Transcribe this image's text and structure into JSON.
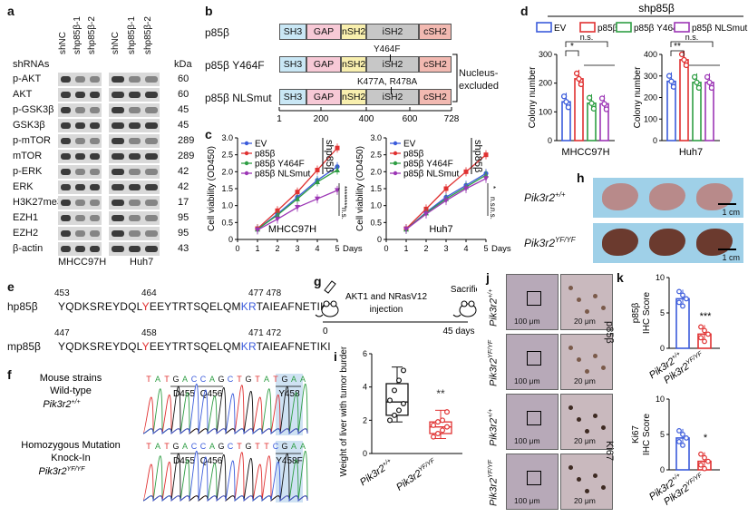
{
  "panels": {
    "a": "a",
    "b": "b",
    "c": "c",
    "d": "d",
    "e": "e",
    "f": "f",
    "g": "g",
    "h": "h",
    "i": "i",
    "j": "j",
    "k": "k"
  },
  "panel_a": {
    "shrnas_label": "shRNAs",
    "kda_label": "kDa",
    "lanes": [
      "shNC",
      "shp85β-1",
      "shp85β-2",
      "shNC",
      "shp85β-1",
      "shp85β-2"
    ],
    "cell_lines": [
      "MHCC97H",
      "Huh7"
    ],
    "blots": [
      {
        "name": "p-AKT",
        "kda": "60"
      },
      {
        "name": "AKT",
        "kda": "60"
      },
      {
        "name": "p-GSK3β",
        "kda": "45"
      },
      {
        "name": "GSK3β",
        "kda": "45"
      },
      {
        "name": "p-mTOR",
        "kda": "289"
      },
      {
        "name": "mTOR",
        "kda": "289"
      },
      {
        "name": "p-ERK",
        "kda": "42"
      },
      {
        "name": "ERK",
        "kda": "42"
      },
      {
        "name": "H3K27me3",
        "kda": "17"
      },
      {
        "name": "EZH1",
        "kda": "95"
      },
      {
        "name": "EZH2",
        "kda": "95"
      },
      {
        "name": "β-actin",
        "kda": "43"
      }
    ]
  },
  "panel_b": {
    "constructs": [
      {
        "name": "p85β",
        "note": ""
      },
      {
        "name": "p85β Y464F",
        "note": "Y464F"
      },
      {
        "name": "p85β NLSmut",
        "note": "K477A, R478A"
      }
    ],
    "domains": [
      {
        "name": "SH3",
        "color": "#c9e7f5"
      },
      {
        "name": "GAP",
        "color": "#f7c9d6"
      },
      {
        "name": "nSH2",
        "color": "#f8efae"
      },
      {
        "name": "iSH2",
        "color": "#c7c7c7"
      },
      {
        "name": "cSH2",
        "color": "#f2b9b1"
      }
    ],
    "axis_ticks": [
      "1",
      "200",
      "400",
      "600",
      "728"
    ],
    "nucleus_excluded": "Nucleus-excluded"
  },
  "panel_c": {
    "legend": [
      "EV",
      "p85β",
      "p85β Y464F",
      "p85β NLSmut"
    ],
    "colors": [
      "#3b5bdb",
      "#e03131",
      "#2f9e44",
      "#9c36b5"
    ],
    "ylabel": "Cell viability (OD450)",
    "xlabel": "Days",
    "shp85b": "shp85β",
    "sig_left": [
      "****",
      "****",
      "n.s."
    ],
    "sig_right": [
      "*",
      "n.s.",
      "n.s."
    ],
    "chart_data": [
      {
        "type": "line",
        "title": "MHCC97H",
        "x": [
          1,
          2,
          3,
          4,
          5
        ],
        "xlim": [
          0,
          5
        ],
        "ylim": [
          0,
          3.0
        ],
        "yticks": [
          "0",
          "0.5",
          "1.0",
          "1.5",
          "2.0",
          "2.5",
          "3.0"
        ],
        "series": [
          {
            "name": "EV",
            "values": [
              0.3,
              0.75,
              1.25,
              1.75,
              2.15
            ]
          },
          {
            "name": "p85β",
            "values": [
              0.32,
              0.85,
              1.4,
              2.05,
              2.7
            ]
          },
          {
            "name": "p85β Y464F",
            "values": [
              0.3,
              0.72,
              1.2,
              1.7,
              2.05
            ]
          },
          {
            "name": "p85β NLSmut",
            "values": [
              0.28,
              0.6,
              0.95,
              1.2,
              1.45
            ]
          }
        ]
      },
      {
        "type": "line",
        "title": "Huh7",
        "x": [
          1,
          2,
          3,
          4,
          5
        ],
        "xlim": [
          0,
          5
        ],
        "ylim": [
          0,
          3.0
        ],
        "yticks": [
          "0",
          "0.5",
          "1.0",
          "1.5",
          "2.0",
          "2.5",
          "3.0"
        ],
        "series": [
          {
            "name": "EV",
            "values": [
              0.3,
              0.8,
              1.25,
              1.6,
              1.95
            ]
          },
          {
            "name": "p85β",
            "values": [
              0.32,
              0.9,
              1.5,
              2.0,
              2.5
            ]
          },
          {
            "name": "p85β Y464F",
            "values": [
              0.3,
              0.78,
              1.2,
              1.55,
              1.9
            ]
          },
          {
            "name": "p85β NLSmut",
            "values": [
              0.3,
              0.75,
              1.15,
              1.5,
              1.8
            ]
          }
        ]
      }
    ]
  },
  "panel_d": {
    "header": "shp85β",
    "legend": [
      "EV",
      "p85β",
      "p85β Y464F",
      "p85β NLSmut"
    ],
    "colors": [
      "#3b5bdb",
      "#e03131",
      "#2f9e44",
      "#9c36b5"
    ],
    "ylabel": "Colony number",
    "sig_left": [
      "*",
      "n.s."
    ],
    "sig_right": [
      "**",
      "n.s."
    ],
    "chart_data": [
      {
        "type": "bar",
        "title": "MHCC97H",
        "categories": [
          "EV",
          "p85β",
          "p85β Y464F",
          "p85β NLSmut"
        ],
        "values": [
          135,
          215,
          130,
          128
        ],
        "ylim": [
          0,
          300
        ],
        "yticks": [
          "0",
          "100",
          "200",
          "300"
        ]
      },
      {
        "type": "bar",
        "title": "Huh7",
        "categories": [
          "EV",
          "p85β",
          "p85β Y464F",
          "p85β NLSmut"
        ],
        "values": [
          275,
          375,
          270,
          270
        ],
        "ylim": [
          0,
          400
        ],
        "yticks": [
          "0",
          "100",
          "200",
          "300",
          "400"
        ]
      }
    ]
  },
  "panel_e": {
    "rows": [
      {
        "label": "hp85β",
        "start": "453",
        "mid": "464",
        "end": "477 478",
        "seq_a": "YQDKSREYDQL",
        "y": "Y",
        "seq_b": "EEYTRTSQELQM",
        "kr": "KR",
        "seq_c": "TAIEAFNETIKI"
      },
      {
        "label": "mp85β",
        "start": "447",
        "mid": "458",
        "end": "471 472",
        "seq_a": "YQDKSREYDQL",
        "y": "Y",
        "seq_b": "EEYTRTSQELQM",
        "kr": "KR",
        "seq_c": "TAIEAFNETIKI"
      }
    ]
  },
  "panel_f": {
    "row1": {
      "title": "Mouse strains",
      "sub": "Wild-type",
      "gene": "Pik3r2",
      "sup": "+/+",
      "bases": "TATGACCAGCTGTATGAA",
      "codons": [
        "D455",
        "Q456",
        "Y458"
      ]
    },
    "row2": {
      "title": "Homozygous Mutation",
      "sub": "Knock-In",
      "gene": "Pik3r2",
      "sup": "YF/YF",
      "bases": "TATGACCAGCTGTTCGAA",
      "codons": [
        "D455",
        "Q456",
        "Y458F"
      ]
    }
  },
  "panel_g": {
    "injection": "AKT1 and NRasV12 injection",
    "sacrifice": "Sacrifice",
    "start": "0",
    "end": "45 days"
  },
  "panel_h": {
    "row1": {
      "gene": "Pik3r2",
      "sup": "+/+"
    },
    "row2": {
      "gene": "Pik3r2",
      "sup": "YF/YF"
    },
    "scale": "1 cm"
  },
  "panel_i": {
    "ylabel": "Weight of liver with tumor burden (g)",
    "sig": "**",
    "groups": [
      {
        "gene": "Pik3r2",
        "sup": "+/+"
      },
      {
        "gene": "Pik3r2",
        "sup": "YF/YF"
      }
    ],
    "chart_data": {
      "type": "box",
      "ylim": [
        0,
        6
      ],
      "yticks": [
        "0",
        "2",
        "4",
        "6"
      ],
      "groups": [
        {
          "min": 1.9,
          "q1": 2.3,
          "median": 3.1,
          "q3": 4.2,
          "max": 5.2,
          "points": [
            2.0,
            2.3,
            2.6,
            3.0,
            3.2,
            3.8,
            4.4,
            5.0
          ]
        },
        {
          "min": 0.9,
          "q1": 1.2,
          "median": 1.6,
          "q3": 1.9,
          "max": 2.6,
          "points": [
            1.0,
            1.2,
            1.4,
            1.6,
            1.7,
            1.9,
            2.0,
            2.5
          ]
        }
      ],
      "colors": [
        "#111111",
        "#e03131"
      ]
    }
  },
  "panel_j": {
    "rows": [
      {
        "gene": "Pik3r2",
        "sup": "+/+"
      },
      {
        "gene": "Pik3r2",
        "sup": "YF/YF"
      },
      {
        "gene": "Pik3r2",
        "sup": "+/+"
      },
      {
        "gene": "Pik3r2",
        "sup": "YF/YF"
      }
    ],
    "scale_low": "100 μm",
    "scale_high": "20 μm",
    "stain_top": "p85β",
    "stain_bottom": "Ki67"
  },
  "panel_k": {
    "groups": [
      {
        "gene": "Pik3r2",
        "sup": "+/+"
      },
      {
        "gene": "Pik3r2",
        "sup": "YF/YF"
      }
    ],
    "colors": [
      "#3b5bdb",
      "#e03131"
    ],
    "chart_data": [
      {
        "type": "bar",
        "ylabel": "p85β IHC Score",
        "sig": "***",
        "categories": [
          "Pik3r2+/+",
          "Pik3r2YF/YF"
        ],
        "values": [
          7,
          2
        ],
        "ylim": [
          0,
          10
        ],
        "yticks": [
          "0",
          "5",
          "10"
        ]
      },
      {
        "type": "bar",
        "ylabel": "Ki67 IHC Score",
        "sig": "*",
        "categories": [
          "Pik3r2+/+",
          "Pik3r2YF/YF"
        ],
        "values": [
          4.5,
          1.2
        ],
        "ylim": [
          0,
          10
        ],
        "yticks": [
          "0",
          "5",
          "10"
        ]
      }
    ]
  }
}
